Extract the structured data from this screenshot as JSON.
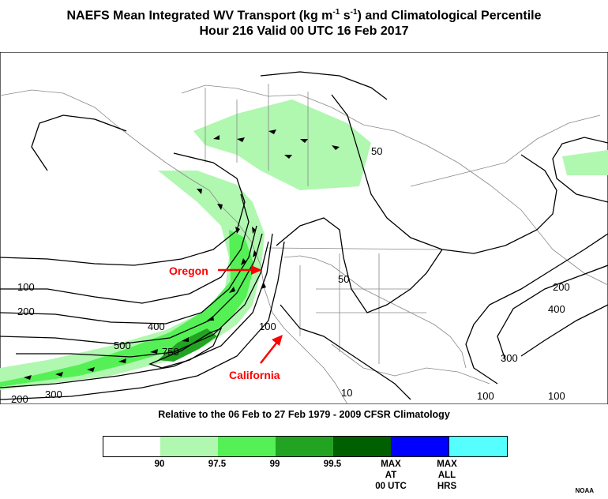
{
  "title_line1": "NAEFS Mean Integrated WV Transport (kg m",
  "title_exp1": "-1",
  "title_mid": " s",
  "title_exp2": "-1",
  "title_end": ") and Climatological Percentile",
  "title_line2": "Hour 216 Valid 00 UTC 16 Feb 2017",
  "subtitle": "Relative to the 06 Feb to 27 Feb 1979 - 2009 CFSR Climatology",
  "annotations": {
    "oregon": "Oregon",
    "california": "California"
  },
  "contour_labels": {
    "c100_left": "100",
    "c200_left": "200",
    "c300_left": "300",
    "c200_bottom": "200",
    "c400_mid": "400",
    "c500_mid": "500",
    "c750": "750",
    "c100_coast": "100",
    "c50_north": "50",
    "c50_us": "50",
    "c10_mex": "10",
    "c200_atl": "200",
    "c400_atl": "400",
    "c300_atl": "300",
    "c100_atl_a": "100",
    "c100_atl_b": "100"
  },
  "legend": {
    "colors": [
      "#ffffff",
      "#b0f7b0",
      "#55f055",
      "#22a322",
      "#006000",
      "#0000ff",
      "#55ffff"
    ],
    "labels": [
      "90",
      "97.5",
      "99",
      "99.5",
      "MAX\nAT\n00 UTC",
      "MAX\nALL\nHRS"
    ]
  },
  "credit": "NOAA",
  "colors": {
    "arrow": "#ff0000",
    "contour": "#000000",
    "border": "#888888"
  }
}
